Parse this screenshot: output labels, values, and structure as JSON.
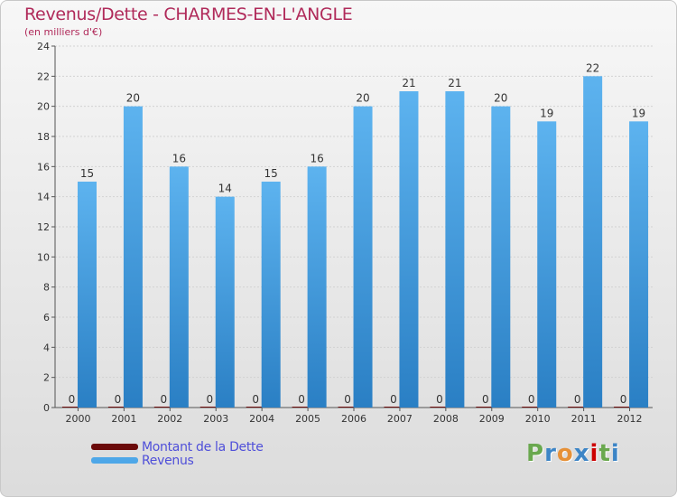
{
  "header": {
    "title": "Revenus/Dette - CHARMES-EN-L'ANGLE",
    "subtitle": "(en milliers d'€)"
  },
  "brand": {
    "logo_letters": [
      "P",
      "r",
      "o",
      "x",
      "i",
      "t",
      "i"
    ],
    "logo_colors": [
      "#6aa84f",
      "#3d85c6",
      "#e69138",
      "#3d85c6",
      "#cc0000",
      "#6aa84f",
      "#3d85c6"
    ]
  },
  "chart_data": {
    "type": "bar",
    "title": "Revenus/Dette - CHARMES-EN-L'ANGLE",
    "subtitle": "(en milliers d'€)",
    "categories": [
      "2000",
      "2001",
      "2002",
      "2003",
      "2004",
      "2005",
      "2006",
      "2007",
      "2008",
      "2009",
      "2010",
      "2011",
      "2012"
    ],
    "series": [
      {
        "name": "Montant de la Dette",
        "color": "#6b0a0a",
        "values": [
          0,
          0,
          0,
          0,
          0,
          0,
          0,
          0,
          0,
          0,
          0,
          0,
          0
        ]
      },
      {
        "name": "Revenus",
        "color": "#4ea7e8",
        "values": [
          15,
          20,
          16,
          14,
          15,
          16,
          20,
          21,
          21,
          20,
          19,
          22,
          19
        ]
      }
    ],
    "ylim": [
      0,
      24
    ],
    "yticks": [
      "0",
      "2",
      "4",
      "6",
      "8",
      "10",
      "12",
      "14",
      "16",
      "18",
      "20",
      "22",
      "24"
    ],
    "grid": true,
    "legend": "bottom-left"
  }
}
